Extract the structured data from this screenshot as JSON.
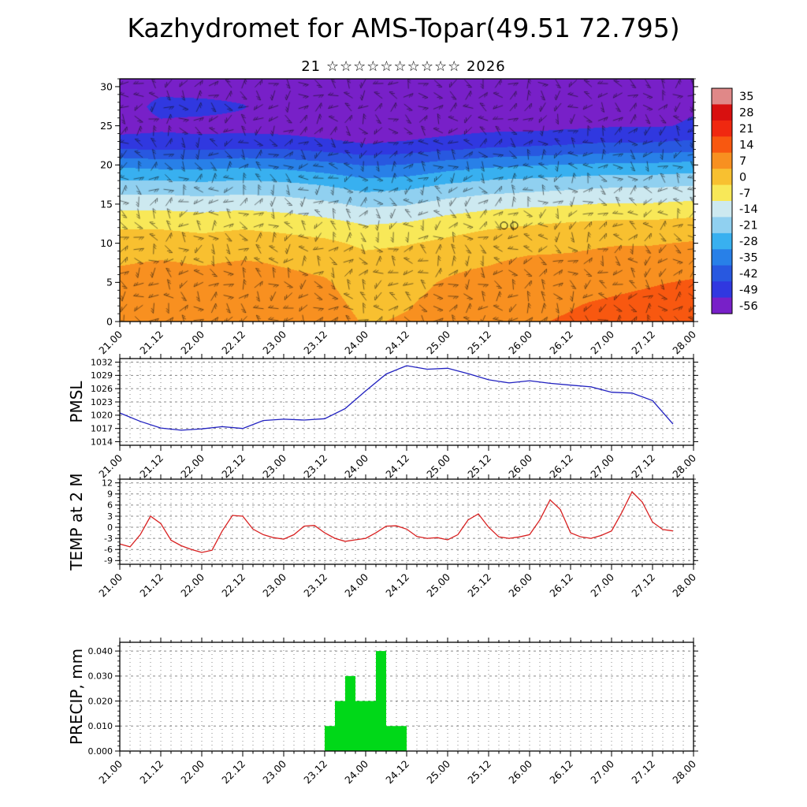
{
  "title": "Kazhydromet for AMS-Topar(49.51 72.795)",
  "subtitle": "21 ☆☆☆☆☆☆☆☆☆☆ 2026",
  "x_axis": {
    "labels": [
      "21.00",
      "21.12",
      "22.00",
      "22.12",
      "23.00",
      "23.12",
      "24.00",
      "24.12",
      "25.00",
      "25.12",
      "26.00",
      "26.12",
      "27.00",
      "27.12",
      "28.00"
    ],
    "major_step_hours": 12,
    "minor_step_hours": 3,
    "grid_step_hours": 3,
    "total_hours": 168
  },
  "chart_data": [
    {
      "id": "cross_section",
      "type": "heatmap",
      "label": "",
      "y_ticks": [
        0,
        5,
        10,
        15,
        20,
        25,
        30
      ],
      "y_tick_labels": [
        "0",
        "5",
        "10",
        "15",
        "20",
        "25",
        "30"
      ],
      "y_range": [
        0,
        31
      ],
      "y_minor_step": 1,
      "x_hours": [
        0,
        12,
        24,
        36,
        48,
        60,
        72,
        84,
        96,
        108,
        120,
        132,
        144,
        156,
        168
      ],
      "heights": [
        0,
        2.5,
        5,
        7.5,
        10,
        12.5,
        15,
        17.5,
        20,
        22.5,
        25,
        27.5,
        30
      ],
      "temps_by_column": [
        [
          8,
          7,
          6,
          3,
          0,
          -5,
          -13,
          -22,
          -33,
          -48,
          -56,
          -57,
          -57
        ],
        [
          9,
          8,
          6,
          4,
          0,
          -5,
          -13,
          -22,
          -34,
          -49,
          -54,
          -50,
          -55
        ],
        [
          8,
          7,
          6,
          3,
          -1,
          -6,
          -14,
          -23,
          -34,
          -49,
          -55,
          -50,
          -56
        ],
        [
          9,
          8,
          6,
          4,
          0,
          -5,
          -13,
          -22,
          -33,
          -48,
          -55,
          -52,
          -56
        ],
        [
          8,
          7,
          5,
          3,
          -1,
          -6,
          -14,
          -23,
          -34,
          -48,
          -56,
          -57,
          -57
        ],
        [
          6,
          5,
          4,
          2,
          -2,
          -8,
          -16,
          -25,
          -36,
          -50,
          -57,
          -57,
          -57
        ],
        [
          3,
          2,
          1,
          -1,
          -5,
          -11,
          -19,
          -28,
          -39,
          -52,
          -58,
          -58,
          -58
        ],
        [
          4,
          3,
          2,
          0,
          -4,
          -10,
          -18,
          -27,
          -38,
          -51,
          -57,
          -57,
          -57
        ],
        [
          6,
          5,
          4,
          2,
          -2,
          -7,
          -15,
          -24,
          -35,
          -49,
          -56,
          -57,
          -57
        ],
        [
          8,
          7,
          6,
          3,
          0,
          -5,
          -13,
          -22,
          -33,
          -47,
          -55,
          -56,
          -56
        ],
        [
          10,
          9,
          7,
          5,
          1,
          -4,
          -12,
          -21,
          -32,
          -46,
          -55,
          -56,
          -56
        ],
        [
          11,
          10,
          8,
          5,
          2,
          -3,
          -11,
          -20,
          -31,
          -45,
          -54,
          -55,
          -55
        ],
        [
          13,
          11,
          9,
          6,
          3,
          -2,
          -10,
          -19,
          -30,
          -44,
          -53,
          -54,
          -54
        ],
        [
          14,
          12,
          10,
          7,
          3,
          -2,
          -10,
          -19,
          -30,
          -44,
          -53,
          -54,
          -54
        ],
        [
          16,
          14,
          11,
          8,
          4,
          -1,
          -9,
          -18,
          -29,
          -43,
          -52,
          -53,
          -53
        ]
      ],
      "wind_barbs": true,
      "circle_markers": [
        {
          "t": 112.5,
          "h": 12.2
        },
        {
          "t": 115.5,
          "h": 12.2
        }
      ],
      "colorbar": {
        "levels": [
          "35",
          "28",
          "21",
          "14",
          "7",
          "0",
          "-7",
          "-14",
          "-21",
          "-28",
          "-35",
          "-42",
          "-49",
          "-56"
        ],
        "colors": [
          "#e08888",
          "#d81010",
          "#f02810",
          "#f85810",
          "#f89020",
          "#f8c030",
          "#f8e858",
          "#cde9f0",
          "#90d0f0",
          "#38b0f0",
          "#2880e8",
          "#2858e0",
          "#3038e0",
          "#7820c8"
        ]
      }
    },
    {
      "id": "pmsl",
      "type": "line",
      "label": "PMSL",
      "color": "#2020c0",
      "y_ticks": [
        1014,
        1017,
        1020,
        1023,
        1026,
        1029,
        1032
      ],
      "y_tick_labels": [
        "1014",
        "1017",
        "1020",
        "1023",
        "1026",
        "1029",
        "1032"
      ],
      "y_range": [
        1013.2,
        1032.8
      ],
      "y_minor_step": 1,
      "start_hour": 0,
      "step_hours": 6,
      "values": [
        1020.5,
        1018.6,
        1017.1,
        1016.6,
        1016.9,
        1017.4,
        1017.0,
        1018.8,
        1019.1,
        1018.9,
        1019.2,
        1021.5,
        1025.5,
        1029.3,
        1031.2,
        1030.4,
        1030.6,
        1029.4,
        1028.0,
        1027.3,
        1027.8,
        1027.2,
        1026.8,
        1026.4,
        1025.2,
        1025.0,
        1023.3,
        1018.0
      ]
    },
    {
      "id": "temp2m",
      "type": "line",
      "label": "TEMP at 2 M",
      "color": "#d82020",
      "y_ticks": [
        -9,
        -6,
        -3,
        0,
        3,
        6,
        9,
        12
      ],
      "y_tick_labels": [
        "-9",
        "-6",
        "-3",
        "0",
        "3",
        "6",
        "9",
        "12"
      ],
      "y_range": [
        -10,
        13
      ],
      "y_minor_step": 1,
      "start_hour": 0,
      "step_hours": 3,
      "values": [
        -4.5,
        -5.3,
        -2.0,
        3.0,
        1.0,
        -3.5,
        -5.0,
        -6.0,
        -6.8,
        -6.2,
        -1.0,
        3.2,
        3.0,
        -0.5,
        -2.0,
        -2.8,
        -3.2,
        -2.0,
        0.3,
        0.5,
        -1.5,
        -3.0,
        -3.8,
        -3.4,
        -3.0,
        -1.5,
        0.3,
        0.4,
        -0.5,
        -2.5,
        -3.0,
        -2.8,
        -3.4,
        -2.0,
        2.0,
        3.6,
        0.0,
        -2.6,
        -3.0,
        -2.6,
        -2.0,
        2.0,
        7.4,
        4.8,
        -1.5,
        -2.6,
        -3.0,
        -2.2,
        -1.0,
        4.0,
        9.6,
        6.8,
        1.4,
        -0.6,
        -1.0
      ]
    },
    {
      "id": "precip",
      "type": "bar",
      "label": "PRECIP, mm",
      "color": "#00d818",
      "y_ticks": [
        0,
        0.01,
        0.02,
        0.03,
        0.04
      ],
      "y_tick_labels": [
        "0.000",
        "0.010",
        "0.020",
        "0.030",
        "0.040"
      ],
      "y_range": [
        0,
        0.0435
      ],
      "y_minor_step": 0.002,
      "start_hour": 0,
      "step_hours": 3,
      "values": [
        0,
        0,
        0,
        0,
        0,
        0,
        0,
        0,
        0,
        0,
        0,
        0,
        0,
        0,
        0,
        0,
        0,
        0,
        0,
        0,
        0.01,
        0.02,
        0.03,
        0.02,
        0.02,
        0.04,
        0.01,
        0.01,
        0,
        0,
        0,
        0,
        0,
        0,
        0,
        0,
        0,
        0,
        0,
        0,
        0,
        0,
        0,
        0,
        0,
        0,
        0,
        0,
        0,
        0,
        0,
        0,
        0,
        0,
        0,
        0
      ]
    }
  ]
}
